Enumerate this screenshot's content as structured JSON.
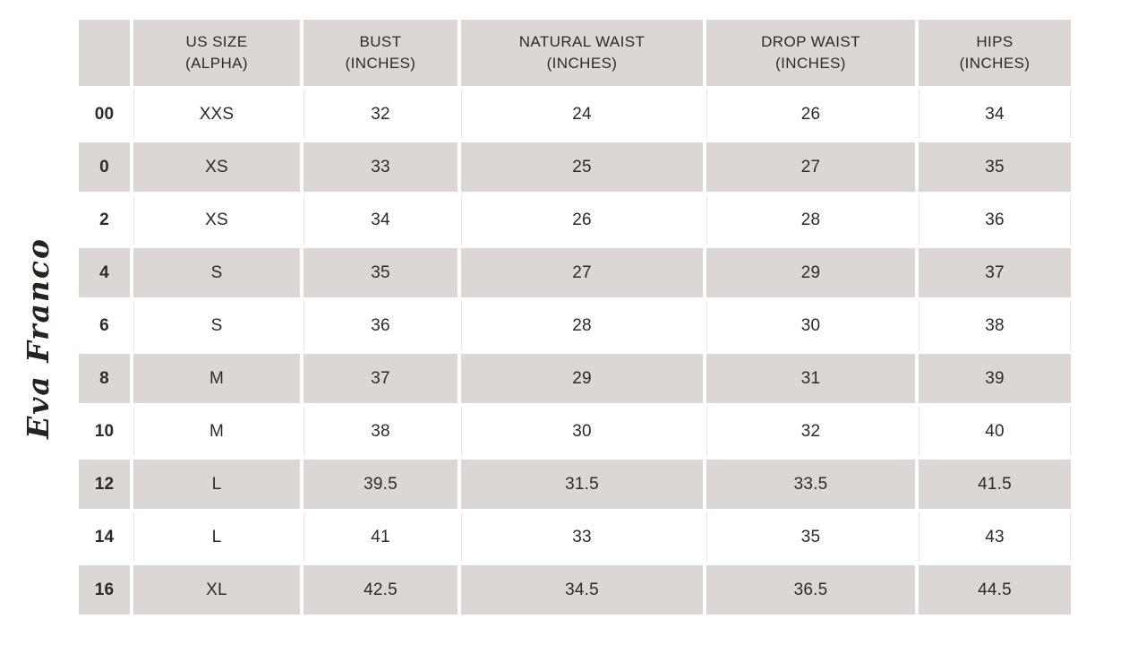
{
  "brand": {
    "logo_text": "Eva Franco"
  },
  "table": {
    "columns": [
      {
        "line1": "",
        "line2": ""
      },
      {
        "line1": "US SIZE",
        "line2": "(ALPHA)"
      },
      {
        "line1": "BUST",
        "line2": "(INCHES)"
      },
      {
        "line1": "NATURAL WAIST",
        "line2": "(INCHES)"
      },
      {
        "line1": "DROP WAIST",
        "line2": "(INCHES)"
      },
      {
        "line1": "HIPS",
        "line2": "(INCHES)"
      }
    ],
    "rows": [
      [
        "00",
        "XXS",
        "32",
        "24",
        "26",
        "34"
      ],
      [
        "0",
        "XS",
        "33",
        "25",
        "27",
        "35"
      ],
      [
        "2",
        "XS",
        "34",
        "26",
        "28",
        "36"
      ],
      [
        "4",
        "S",
        "35",
        "27",
        "29",
        "37"
      ],
      [
        "6",
        "S",
        "36",
        "28",
        "30",
        "38"
      ],
      [
        "8",
        "M",
        "37",
        "29",
        "31",
        "39"
      ],
      [
        "10",
        "M",
        "38",
        "30",
        "32",
        "40"
      ],
      [
        "12",
        "L",
        "39.5",
        "31.5",
        "33.5",
        "41.5"
      ],
      [
        "14",
        "L",
        "41",
        "33",
        "35",
        "43"
      ],
      [
        "16",
        "XL",
        "42.5",
        "34.5",
        "36.5",
        "44.5"
      ]
    ]
  },
  "colors": {
    "cell-gray": "#dcd7d5",
    "cell-white": "#ffffff",
    "text": "#2d2a28",
    "logo": "#262220"
  }
}
